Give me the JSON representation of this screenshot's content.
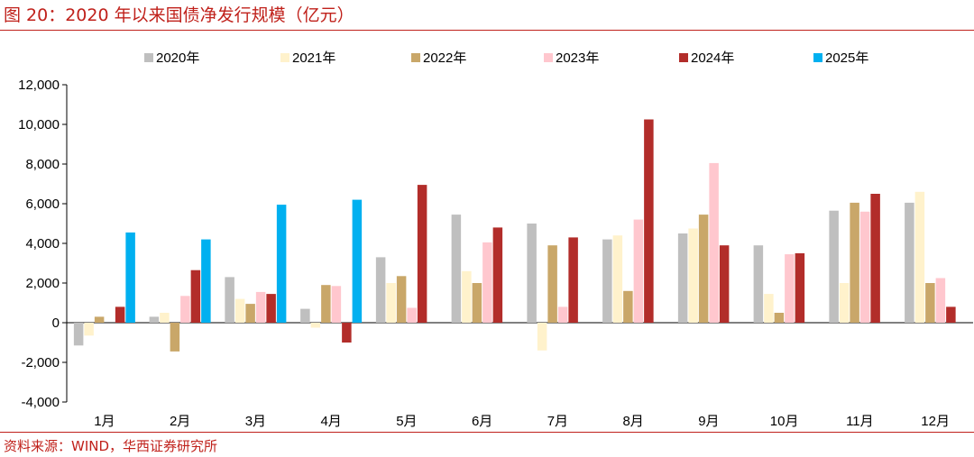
{
  "title": "图 20：2020 年以来国债净发行规模（亿元）",
  "source": "资料来源：WIND，华西证券研究所",
  "chart_data": {
    "type": "bar",
    "categories": [
      "1月",
      "2月",
      "3月",
      "4月",
      "5月",
      "6月",
      "7月",
      "8月",
      "9月",
      "10月",
      "11月",
      "12月"
    ],
    "ylim": [
      -4000,
      12000
    ],
    "yticks": [
      -4000,
      -2000,
      0,
      2000,
      4000,
      6000,
      8000,
      10000,
      12000
    ],
    "ytick_labels": [
      "-4,000",
      "-2,000",
      "0",
      "2,000",
      "4,000",
      "6,000",
      "8,000",
      "10,000",
      "12,000"
    ],
    "legend_position": "top",
    "grid": false,
    "series": [
      {
        "name": "2020年",
        "color": "#bfbfbf",
        "values": [
          -1150,
          300,
          2300,
          700,
          3300,
          5450,
          5000,
          4200,
          4500,
          3900,
          5650,
          6050
        ]
      },
      {
        "name": "2021年",
        "color": "#fff2cc",
        "values": [
          -650,
          500,
          1200,
          -250,
          2000,
          2600,
          -1400,
          4400,
          4750,
          1450,
          2000,
          6600
        ]
      },
      {
        "name": "2022年",
        "color": "#c9a769",
        "values": [
          300,
          -1450,
          950,
          1900,
          2350,
          2000,
          3900,
          1600,
          5450,
          500,
          6050,
          2000
        ]
      },
      {
        "name": "2023年",
        "color": "#ffc7ce",
        "values": [
          0,
          1350,
          1550,
          1850,
          750,
          4050,
          800,
          5200,
          8050,
          3450,
          5600,
          2250
        ]
      },
      {
        "name": "2024年",
        "color": "#b22d2a",
        "values": [
          800,
          2650,
          1450,
          -1000,
          6950,
          4800,
          4300,
          10250,
          3900,
          3500,
          6500,
          800
        ]
      },
      {
        "name": "2025年",
        "color": "#00b0f0",
        "values": [
          4550,
          4200,
          5950,
          6200,
          null,
          null,
          null,
          null,
          null,
          null,
          null,
          null
        ]
      }
    ]
  }
}
